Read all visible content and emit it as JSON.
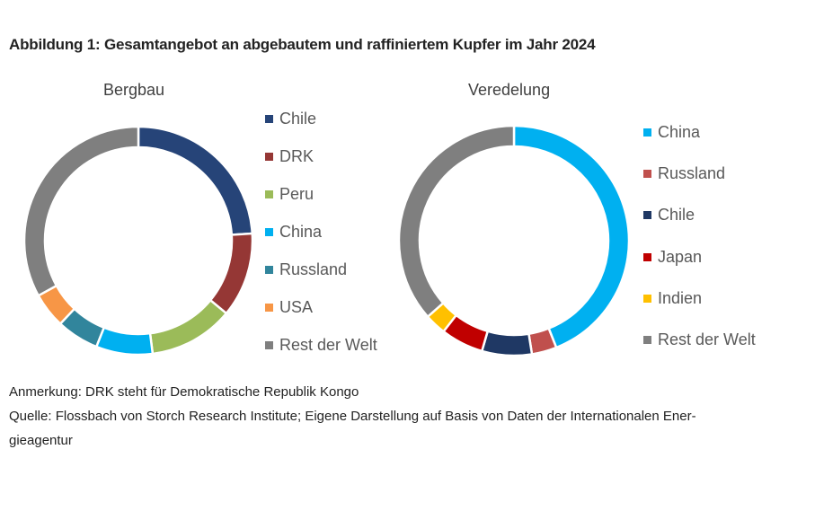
{
  "title": "Abbildung 1: Gesamtangebot an abgebautem und raffiniertem Kupfer im Jahr 2024",
  "chart_data": [
    {
      "type": "pie",
      "donut": true,
      "title": "Bergbau",
      "legend_position": "right",
      "categories": [
        "Chile",
        "DRK",
        "Peru",
        "China",
        "Russland",
        "USA",
        "Rest der Welt"
      ],
      "values": [
        24,
        12,
        12,
        8,
        6,
        5,
        33
      ],
      "colors": [
        "#264478",
        "#953735",
        "#9BBB59",
        "#00B0F0",
        "#31859C",
        "#F79646",
        "#7F7F7F"
      ]
    },
    {
      "type": "pie",
      "donut": true,
      "title": "Veredelung",
      "legend_position": "right",
      "categories": [
        "China",
        "Russland",
        "Chile",
        "Japan",
        "Indien",
        "Rest der Welt"
      ],
      "values": [
        44,
        3.5,
        7,
        6,
        3,
        36.5
      ],
      "colors": [
        "#00B0F0",
        "#C0504D",
        "#1F3864",
        "#C00000",
        "#FFC000",
        "#7F7F7F"
      ]
    }
  ],
  "notes": {
    "line1": "Anmerkung: DRK steht für Demokratische Republik Kongo",
    "line2": "Quelle: Flossbach von Storch Research Institute; Eigene Darstellung auf Basis von Daten der Internationalen Ener-",
    "line3": "gieagentur"
  }
}
